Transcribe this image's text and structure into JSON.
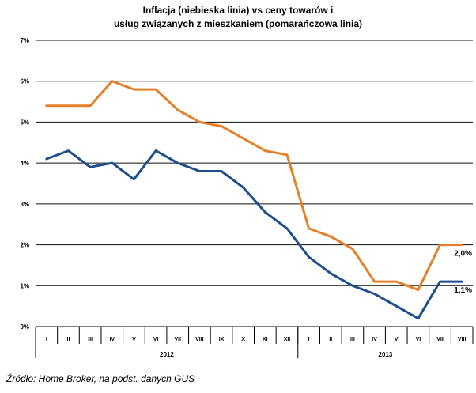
{
  "chart_data": {
    "type": "line",
    "title": [
      "Inflacja (niebieska linia) vs ceny towarów i",
      "usług związanych z mieszkaniem (pomarańczowa linia)"
    ],
    "categories": [
      "I",
      "II",
      "III",
      "IV",
      "V",
      "VI",
      "VII",
      "VIII",
      "IX",
      "X",
      "XI",
      "XII",
      "I",
      "II",
      "III",
      "IV",
      "V",
      "VI",
      "VII",
      "VIII"
    ],
    "year_groups": [
      {
        "label": "2012",
        "count": 12
      },
      {
        "label": "2013",
        "count": 8
      }
    ],
    "series": [
      {
        "color": "#E5802A",
        "values": [
          5.4,
          5.4,
          5.4,
          6.0,
          5.8,
          5.8,
          5.3,
          5.0,
          4.9,
          4.6,
          4.3,
          4.2,
          2.4,
          2.2,
          1.9,
          1.1,
          1.1,
          0.9,
          2.0,
          2.0
        ],
        "end_label": "2,0%"
      },
      {
        "color": "#1F4E8C",
        "values": [
          4.1,
          4.3,
          3.9,
          4.0,
          3.6,
          4.3,
          4.0,
          3.8,
          3.8,
          3.4,
          2.8,
          2.4,
          1.7,
          1.3,
          1.0,
          0.8,
          0.5,
          0.2,
          1.1,
          1.1
        ],
        "end_label": "1,1%"
      }
    ],
    "ylim": [
      0,
      7
    ],
    "yticks": [
      "0%",
      "1%",
      "2%",
      "3%",
      "4%",
      "5%",
      "6%",
      "7%"
    ],
    "grid": true,
    "legend": "none",
    "source": "Źródło: Home Broker, na podst. danych GUS"
  }
}
